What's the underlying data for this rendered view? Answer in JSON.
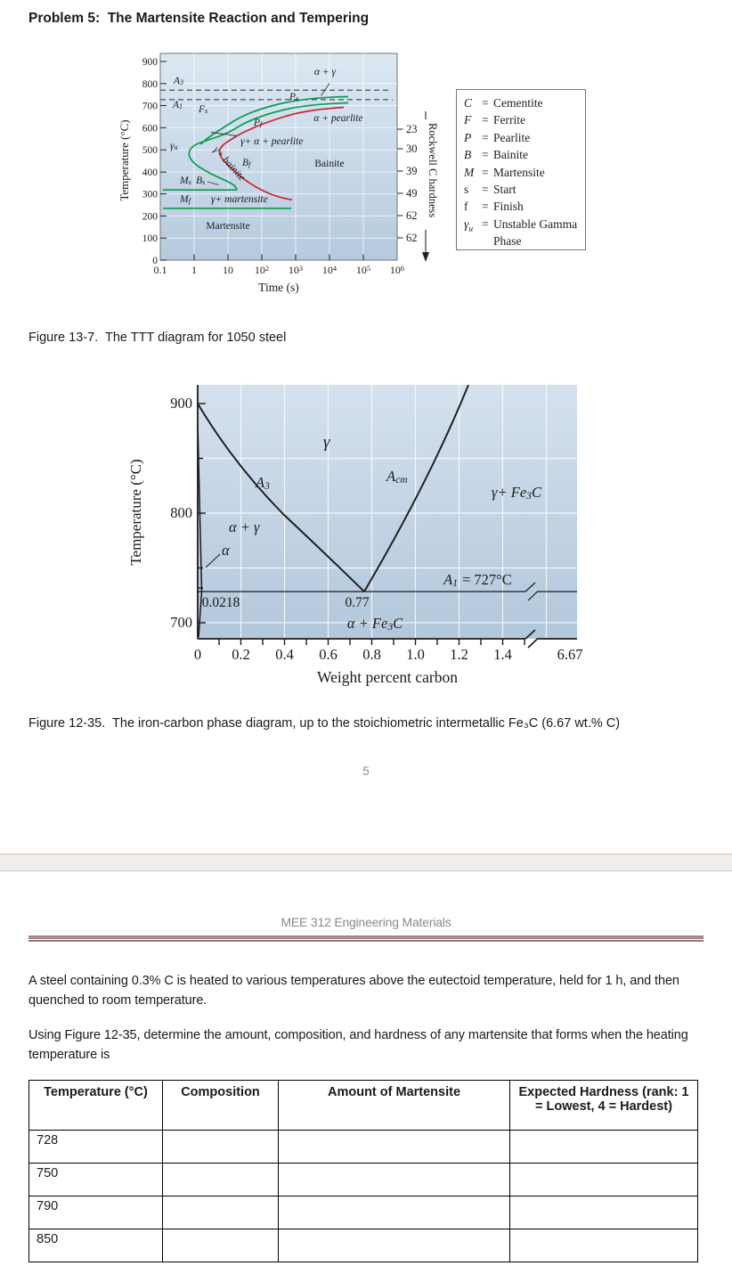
{
  "page": {
    "title": "Problem 5:  The Martensite Reaction and Tempering",
    "page_number": "5",
    "course_header": "MEE 312 Engineering Materials",
    "caption_fig_13_7": "Figure 13-7.  The TTT diagram for 1050 steel",
    "caption_fig_12_35": "Figure 12-35.  The iron-carbon phase diagram, up to the stoichiometric intermetallic Fe₃C (6.67 wt.% C)",
    "para1": "A steel containing 0.3% C is heated to various temperatures above the eutectoid temperature, held for 1 h, and then quenched to room temperature.",
    "para2": "Using Figure 12-35, determine the amount, composition, and hardness of any martensite that forms when the heating temperature is"
  },
  "colors": {
    "ttt_start_curve_green": "#089c4c",
    "ttt_finish_curve_red": "#c9242b",
    "figure_background_blue_top": "#dce8f3",
    "figure_background_blue_bottom": "#b6cade",
    "header_rule_mauve": "#a5898c",
    "page_band_gray": "#f0edeb",
    "muted_text_gray": "#8a8a8a"
  },
  "ttt": {
    "y_axis_label": "Temperature (°C)",
    "x_axis_label": "Time (s)",
    "y_ticks": [
      "900",
      "800",
      "700",
      "600",
      "500",
      "400",
      "300",
      "200",
      "100",
      "0"
    ],
    "x_ticks": [
      "0.1",
      "1",
      "10",
      "10^{2}",
      "10^{3}",
      "10^{4}",
      "10^{5}",
      "10^{6}"
    ],
    "hardness_axis_label": "Rockwell C hardness",
    "hardness_values": [
      "23",
      "30",
      "39",
      "49",
      "62",
      "62"
    ],
    "labels": {
      "a3": "A_{3}",
      "a1": "A_{1}",
      "fs": "F_{s}",
      "ps": "P_{s}",
      "pf": "P_{f}",
      "bf": "B_{f}",
      "ms": "M_{s}",
      "bs": "B_{s}",
      "mf": "M_{f}",
      "gu": "γ_{u}",
      "alpha_gamma": "α + γ",
      "alpha_pearlite": "α + pearlite",
      "gamma_alpha_pearlite": "γ+ α + pearlite",
      "gamma_bainite": "γ+ bainite",
      "bainite": "Bainite",
      "gamma_martensite": "γ+ martensite",
      "martensite": "Martensite"
    }
  },
  "ttt_legend": {
    "items": [
      {
        "sym": "C",
        "name": "Cementite"
      },
      {
        "sym": "F",
        "name": "Ferrite"
      },
      {
        "sym": "P",
        "name": "Pearlite"
      },
      {
        "sym": "B",
        "name": "Bainite"
      },
      {
        "sym": "M",
        "name": "Martensite"
      },
      {
        "sym": "s",
        "name": "Start"
      },
      {
        "sym": "f",
        "name": "Finish"
      },
      {
        "sym": "γ_{u}",
        "name": "Unstable Gamma Phase"
      }
    ]
  },
  "phase": {
    "y_axis_label": "Temperature (°C)",
    "x_axis_label": "Weight percent carbon",
    "y_ticks": [
      "900",
      "800",
      "700"
    ],
    "x_ticks": [
      "0",
      "0.2",
      "0.4",
      "0.6",
      "0.8",
      "1.0",
      "1.2",
      "1.4",
      "6.67"
    ],
    "labels": {
      "gamma": "γ",
      "a3": "A_{3}",
      "acm": "A_{cm}",
      "gamma_fe3c": "γ+ Fe_{3}C",
      "alpha_gamma": "α + γ",
      "alpha": "α",
      "a1_sym": "A_{1}",
      "a1_val": "= 727°C",
      "c_alpha_max": "0.0218",
      "c_eutectoid": "0.77",
      "alpha_fe3c": "α + Fe_{3}C"
    }
  },
  "table": {
    "headers": [
      "Temperature (°C)",
      "Composition",
      "Amount of Martensite",
      "Expected Hardness (rank: 1 = Lowest, 4 = Hardest)"
    ],
    "rows": [
      {
        "temperature": "728",
        "composition": "",
        "amount": "",
        "hardness": ""
      },
      {
        "temperature": "750",
        "composition": "",
        "amount": "",
        "hardness": ""
      },
      {
        "temperature": "790",
        "composition": "",
        "amount": "",
        "hardness": ""
      },
      {
        "temperature": "850",
        "composition": "",
        "amount": "",
        "hardness": ""
      }
    ]
  }
}
